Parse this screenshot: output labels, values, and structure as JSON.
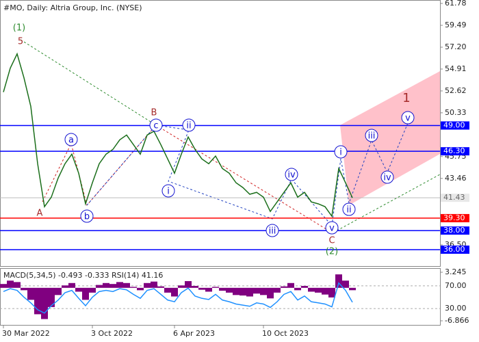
{
  "chart_data": [
    {
      "type": "line",
      "title": "#MO, Daily:  Altria Group, Inc. (NYSE)",
      "color": "#1a6e1a",
      "categories": [
        "30 Mar 2022",
        null,
        null,
        null,
        null,
        null,
        null,
        null,
        null,
        null,
        null,
        null,
        null,
        "3 Oct 2022",
        null,
        null,
        null,
        null,
        null,
        null,
        null,
        null,
        null,
        null,
        null,
        "6 Apr 2023",
        null,
        null,
        null,
        null,
        null,
        null,
        null,
        null,
        null,
        null,
        null,
        null,
        "10 Oct 2023",
        null,
        null,
        null,
        null,
        null,
        null,
        null,
        null,
        null,
        null,
        null,
        null,
        null
      ],
      "values": [
        52.5,
        55,
        56.5,
        54,
        51,
        45,
        40.5,
        41.5,
        43.5,
        45,
        46,
        44,
        40.8,
        43,
        45,
        46,
        46.5,
        47.5,
        48,
        47,
        46,
        48,
        48.4,
        47,
        45.5,
        44,
        46,
        47.8,
        46.5,
        45.5,
        45,
        45.8,
        44.5,
        44,
        43,
        42.5,
        41.8,
        42,
        41.5,
        40,
        41,
        42,
        43,
        41.5,
        42,
        41,
        40.8,
        40.5,
        39.5,
        44.5,
        43,
        41.43
      ],
      "ylim": [
        34.21,
        62.14
      ],
      "yticks": [
        61.78,
        59.49,
        {
          "value": 57.2,
          "label": "57.20"
        },
        54.91,
        52.62,
        50.33,
        45.75,
        43.46,
        {
          "value": 36.5,
          "label": "36.50"
        }
      ],
      "levels": [
        {
          "value": 49,
          "label": "49.00",
          "color": "#0000ff"
        },
        {
          "value": 46.3,
          "label": "46.30",
          "color": "#0000ff"
        },
        {
          "value": 39.3,
          "label": "39.30",
          "color": "#ff0000"
        },
        {
          "value": 38,
          "label": "38.00",
          "color": "#0000ff"
        },
        {
          "value": 36,
          "label": "36.00",
          "color": "#0000ff"
        }
      ],
      "annotations": [
        "(1)",
        "5",
        "A",
        "a",
        "b",
        "B",
        "c",
        "ii",
        "i",
        "iii",
        "iv",
        "v",
        "C",
        "(2)",
        "i",
        "ii",
        "iii",
        "iv",
        "v",
        "1"
      ]
    },
    {
      "type": "bar",
      "title": "MACD(5,34,5) -0.493 -0.333 RSI(14) 41.16",
      "ylim": [
        -7.86,
        3.96
      ],
      "yticks": [
        3.245,
        -6.866
      ],
      "y2lim": [
        0,
        100
      ],
      "y2ticks": [
        {
          "value": 70,
          "label": "70.00"
        },
        {
          "value": 30,
          "label": "30.00"
        }
      ],
      "series": [
        {
          "color": "#800080",
          "values": [
            0.8,
            1.5,
            1.2,
            -0.5,
            -2.5,
            -5.5,
            -6.5,
            -4,
            -1.5,
            0.5,
            1,
            -0.8,
            -2.5,
            -1,
            0.6,
            1,
            0.8,
            1.2,
            1,
            0.2,
            -0.5,
            1,
            1.3,
            0.3,
            -1,
            -1.8,
            0.5,
            1.4,
            0.4,
            -0.4,
            -0.8,
            0.2,
            -0.6,
            -1,
            -1.5,
            -1.6,
            -1.8,
            -1.2,
            -1.5,
            -2.2,
            -1,
            0.3,
            1,
            -0.5,
            0.4,
            -0.8,
            -1,
            -1.4,
            -2,
            2.8,
            1.5,
            -0.493
          ]
        },
        {
          "color": "#1e90ff",
          "axis": "y2",
          "values": [
            60,
            65,
            62,
            50,
            40,
            28,
            22,
            35,
            45,
            58,
            62,
            48,
            35,
            50,
            60,
            62,
            60,
            65,
            63,
            55,
            48,
            62,
            65,
            55,
            45,
            42,
            58,
            66,
            52,
            48,
            46,
            55,
            45,
            42,
            38,
            36,
            34,
            40,
            38,
            32,
            42,
            55,
            60,
            45,
            52,
            42,
            40,
            38,
            33,
            75,
            62,
            41.16
          ]
        }
      ]
    }
  ]
}
